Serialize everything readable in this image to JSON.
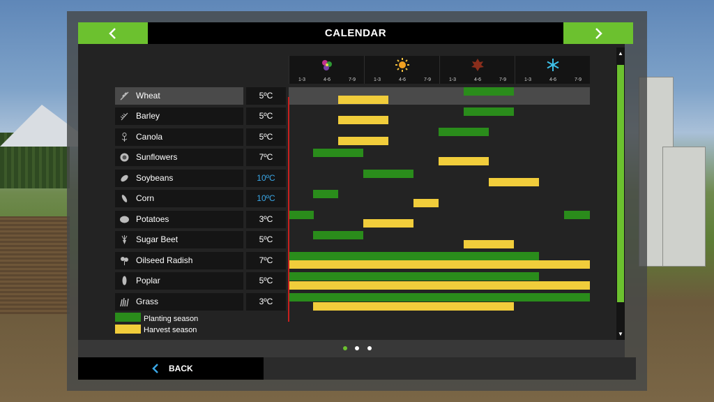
{
  "header": {
    "title": "CALENDAR"
  },
  "seasons": [
    {
      "icon": "spring-flower-icon",
      "months": [
        "1-3",
        "4-6",
        "7-9"
      ]
    },
    {
      "icon": "summer-sun-icon",
      "months": [
        "1-3",
        "4-6",
        "7-9"
      ]
    },
    {
      "icon": "autumn-leaf-icon",
      "months": [
        "1-3",
        "4-6",
        "7-9"
      ]
    },
    {
      "icon": "winter-snowflake-icon",
      "months": [
        "1-3",
        "4-6",
        "7-9"
      ]
    }
  ],
  "crops": [
    {
      "name": "Wheat",
      "temp": "5ºC",
      "icon": "wheat-icon"
    },
    {
      "name": "Barley",
      "temp": "5ºC",
      "icon": "barley-icon"
    },
    {
      "name": "Canola",
      "temp": "5ºC",
      "icon": "canola-icon"
    },
    {
      "name": "Sunflowers",
      "temp": "7ºC",
      "icon": "sunflower-icon"
    },
    {
      "name": "Soybeans",
      "temp": "10ºC",
      "icon": "soybean-icon"
    },
    {
      "name": "Corn",
      "temp": "10ºC",
      "icon": "corn-icon"
    },
    {
      "name": "Potatoes",
      "temp": "3ºC",
      "icon": "potato-icon"
    },
    {
      "name": "Sugar Beet",
      "temp": "5ºC",
      "icon": "sugar-beet-icon"
    },
    {
      "name": "Oilseed Radish",
      "temp": "7ºC",
      "icon": "oilseed-radish-icon"
    },
    {
      "name": "Poplar",
      "temp": "5ºC",
      "icon": "poplar-icon"
    },
    {
      "name": "Grass",
      "temp": "3ºC",
      "icon": "grass-icon"
    }
  ],
  "legend": {
    "planting": "Planting season",
    "harvest": "Harvest season"
  },
  "footer": {
    "back_label": "BACK"
  },
  "colors": {
    "accent": "#6cc12f",
    "planting": "#2a8c1b",
    "harvest": "#f1cd3b",
    "cold_temp": "#3aa7e6",
    "today_marker": "#c8201e"
  }
}
